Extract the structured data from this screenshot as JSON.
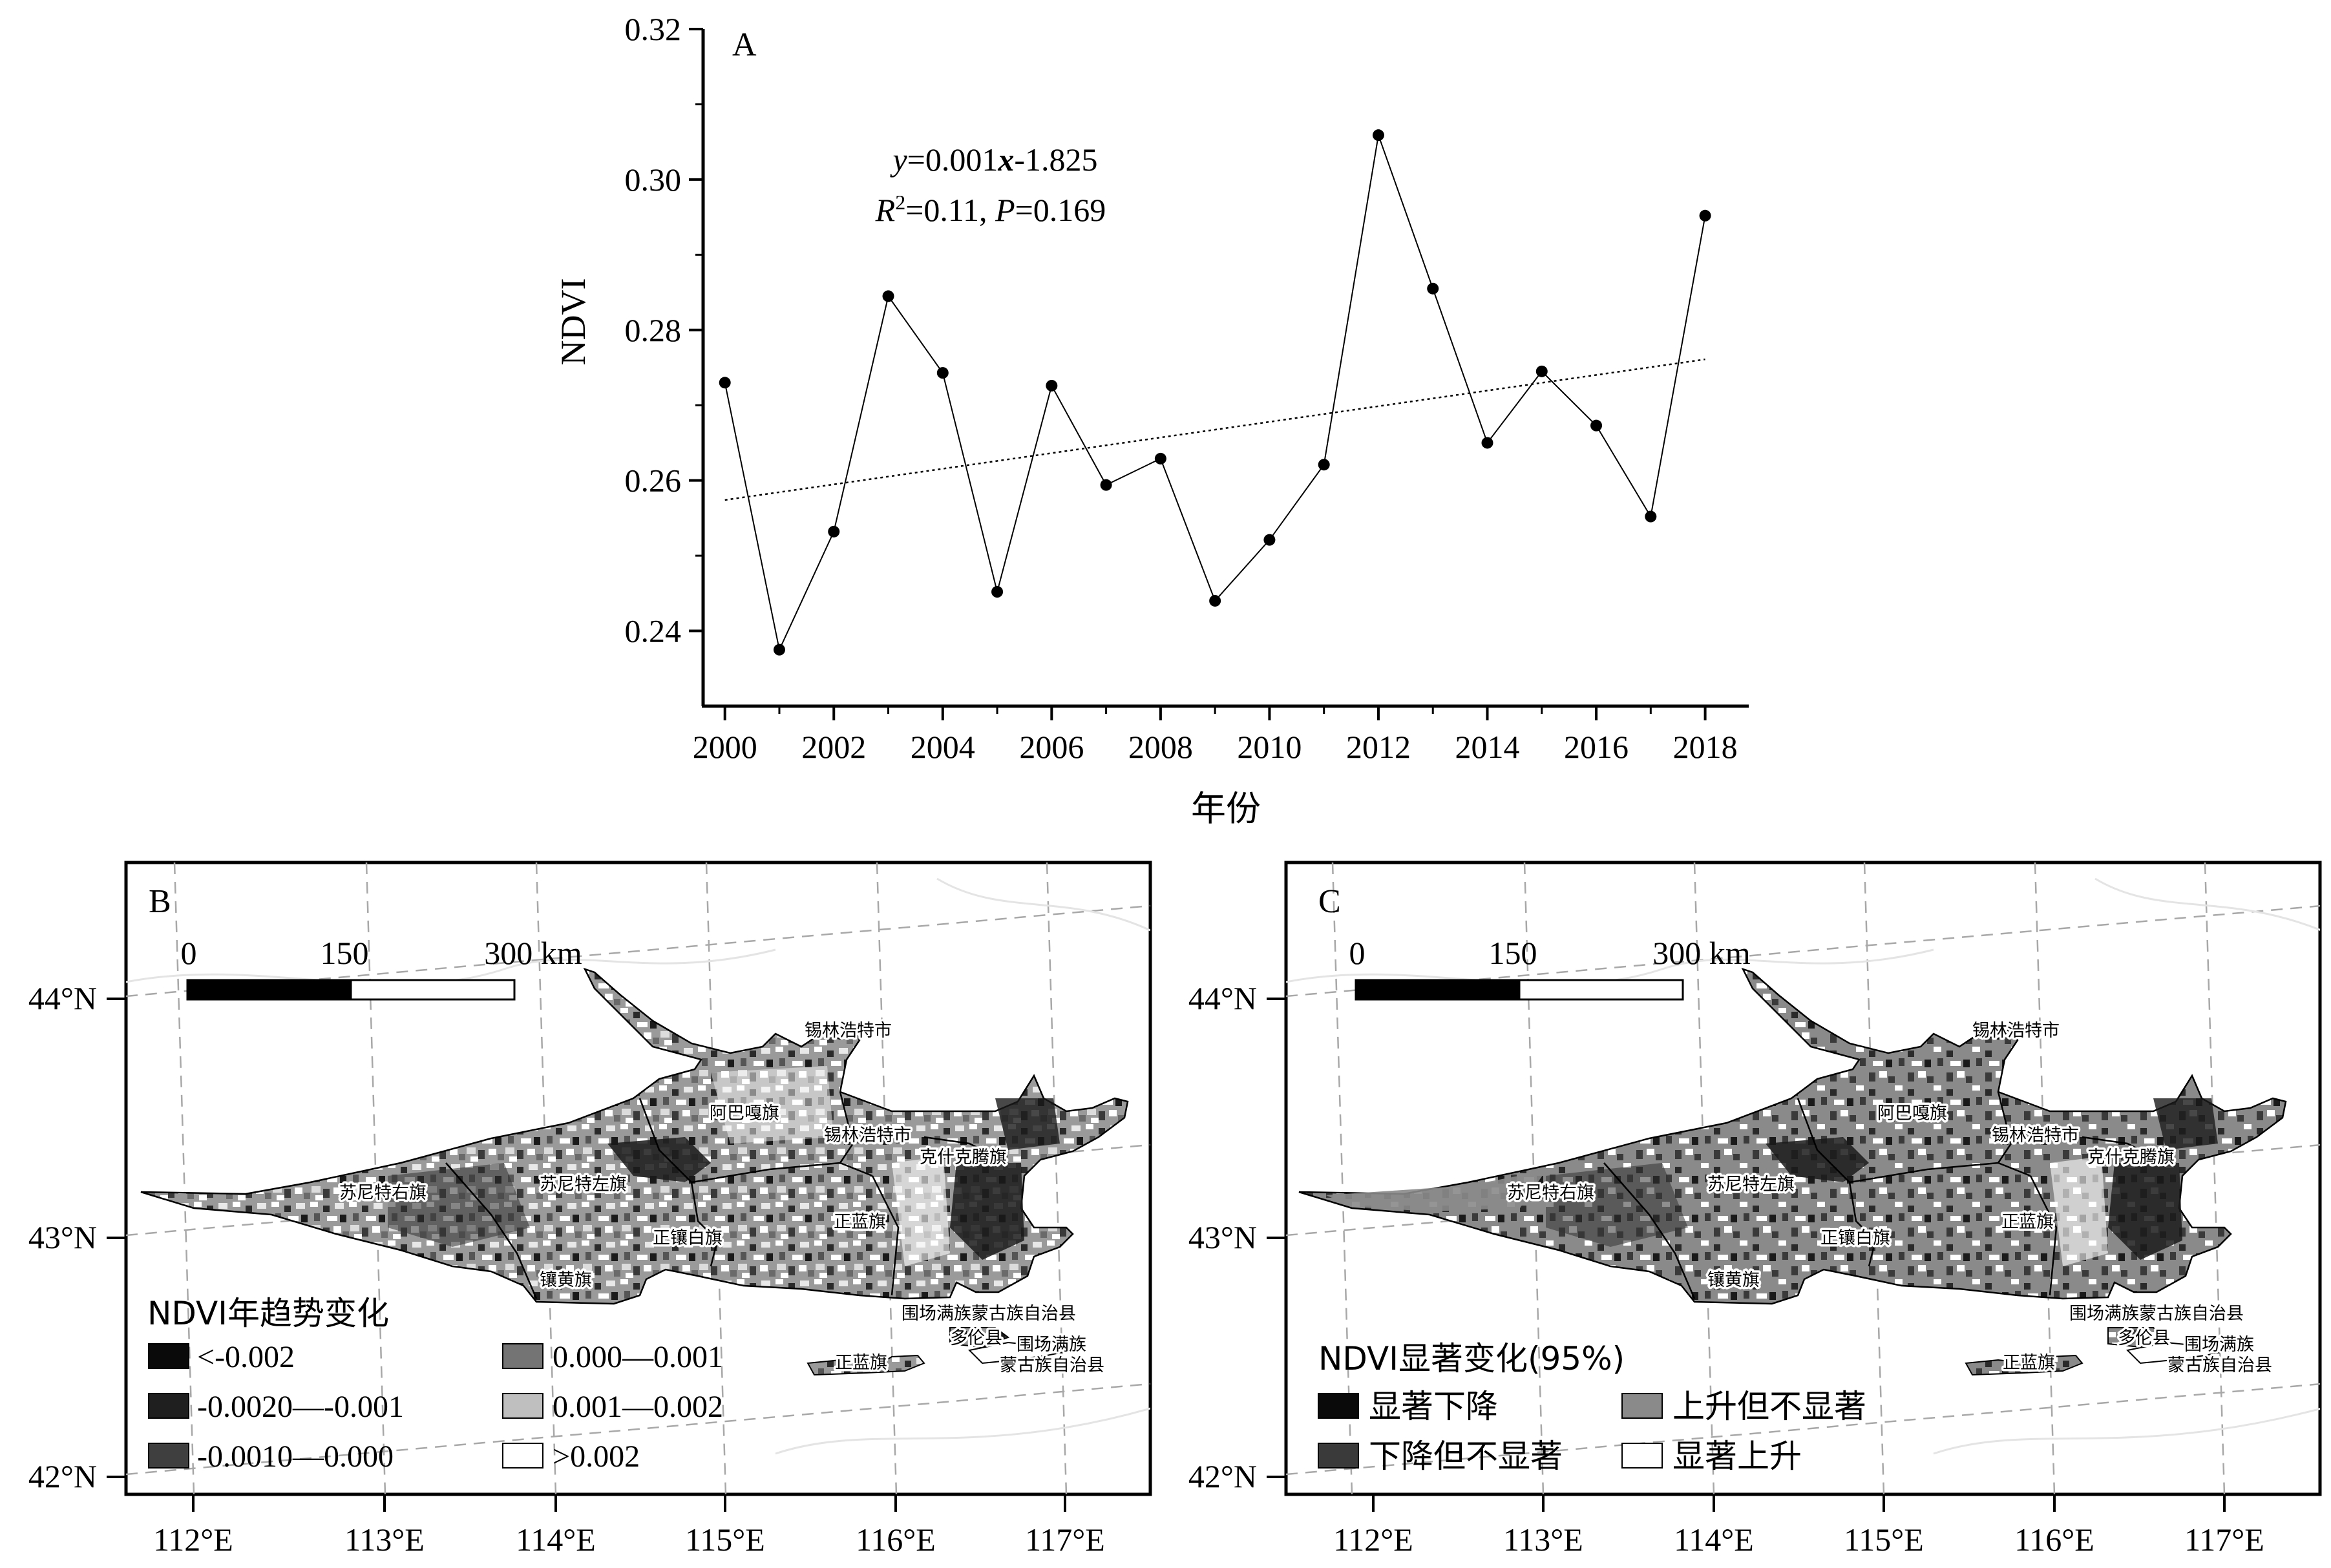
{
  "chart_data": [
    {
      "panel": "A",
      "type": "line",
      "xlabel": "年份",
      "ylabel": "NDVI",
      "xlim": [
        1999.6,
        2018.8
      ],
      "ylim": [
        0.23,
        0.32
      ],
      "xticks": [
        "2000",
        "2002",
        "2004",
        "2006",
        "2008",
        "2010",
        "2012",
        "2014",
        "2016",
        "2018"
      ],
      "yticks": [
        "0.24",
        "0.26",
        "0.28",
        "0.30",
        "0.32"
      ],
      "x": [
        2000,
        2001,
        2002,
        2003,
        2004,
        2005,
        2006,
        2007,
        2008,
        2009,
        2010,
        2011,
        2012,
        2013,
        2014,
        2015,
        2016,
        2017,
        2018
      ],
      "series": [
        {
          "values": [
            0.273,
            0.2375,
            0.2532,
            0.2845,
            0.2743,
            0.2452,
            0.2726,
            0.2594,
            0.2629,
            0.244,
            0.2521,
            0.2621,
            0.3059,
            0.2855,
            0.265,
            0.2745,
            0.2673,
            0.2552,
            0.2952
          ]
        }
      ],
      "trend": {
        "slope": 0.001,
        "intercept": -1.825,
        "y_start": 0.2574,
        "y_end": 0.2761,
        "style": "dotted"
      },
      "annotations": {
        "eq_y": "y",
        "eq_body": "=0.001",
        "eq_x": "x",
        "eq_tail": "-1.825",
        "r_sym": "R",
        "r_sup": "2",
        "r_val": "=0.11, ",
        "p_sym": "P",
        "p_val": "=0.169"
      },
      "grid": false
    },
    {
      "panel": "B",
      "type": "map",
      "legend_title": "NDVI年趋势变化",
      "legend": [
        {
          "label": "<-0.002",
          "color": "#0a0a0a"
        },
        {
          "label": "-0.0020—-0.001",
          "color": "#1f1f1f"
        },
        {
          "label": "-0.0010—0.000",
          "color": "#3f3f3f"
        },
        {
          "label": "0.000—0.001",
          "color": "#747474"
        },
        {
          "label": "0.001—0.002",
          "color": "#bfbfbf"
        },
        {
          "label": ">0.002",
          "color": "#ffffff"
        }
      ]
    },
    {
      "panel": "C",
      "type": "map",
      "legend_title": "NDVI显著变化(95%)",
      "legend": [
        {
          "label": "显著下降",
          "color": "#0a0a0a"
        },
        {
          "label": "下降但不显著",
          "color": "#3a3a3a"
        },
        {
          "label": "上升但不显著",
          "color": "#8a8a8a"
        },
        {
          "label": "显著上升",
          "color": "#ffffff"
        }
      ]
    }
  ],
  "maps": {
    "lat_labels": [
      "44°N",
      "43°N",
      "42°N"
    ],
    "lon_labels": [
      "112°E",
      "113°E",
      "114°E",
      "115°E",
      "116°E",
      "117°E"
    ],
    "scale_bar": {
      "labels": [
        "0",
        "150",
        "300 km"
      ]
    },
    "places": {
      "xilinhot_city": "锡林浩特市",
      "abag": "阿巴嘎旗",
      "xilinhot_city2": "锡林浩特市",
      "hexigten": "克什克腾旗",
      "sonid_right": "苏尼特右旗",
      "sonid_left": "苏尼特左旗",
      "zhengxiangbai": "正镶白旗",
      "zhenglan": "正蓝旗",
      "xianghuang": "镶黄旗",
      "weichang1": "围场满族蒙古族自治县",
      "duolun": "多伦县",
      "weichang2a": "围场满族",
      "weichang2b": "蒙古族自治县",
      "zhenglan2": "正蓝旗"
    }
  },
  "panel_letters": {
    "a": "A",
    "b": "B",
    "c": "C"
  }
}
